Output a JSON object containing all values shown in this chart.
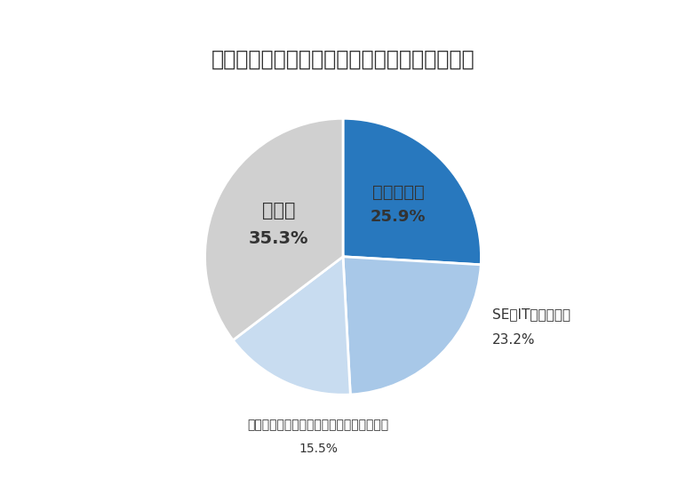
{
  "title": "【職種別】リクルートエージェントの求人内訳",
  "slices": [
    {
      "label": "営業／販売",
      "pct": 25.9,
      "color": "#2878BE",
      "label_inside": true,
      "text_color": "#333333"
    },
    {
      "label": "SE／ITエンジニア",
      "pct": 23.2,
      "color": "#A8C8E8",
      "label_inside": false,
      "text_color": "#333333"
    },
    {
      "label": "エンジニア（設計・生産技術・品質管理）",
      "pct": 15.5,
      "color": "#C8DCF0",
      "label_inside": false,
      "text_color": "#333333"
    },
    {
      "label": "その他",
      "pct": 35.3,
      "color": "#D0D0D0",
      "label_inside": true,
      "text_color": "#333333"
    }
  ],
  "background_color": "#FFFFFF",
  "title_fontsize": 17,
  "label_fontsize_inside": 14,
  "pct_fontsize_inside": 13,
  "label_fontsize_outside": 11,
  "pct_fontsize_outside": 11,
  "text_color": "#333333",
  "edge_color": "#FFFFFF",
  "edge_width": 2.0
}
